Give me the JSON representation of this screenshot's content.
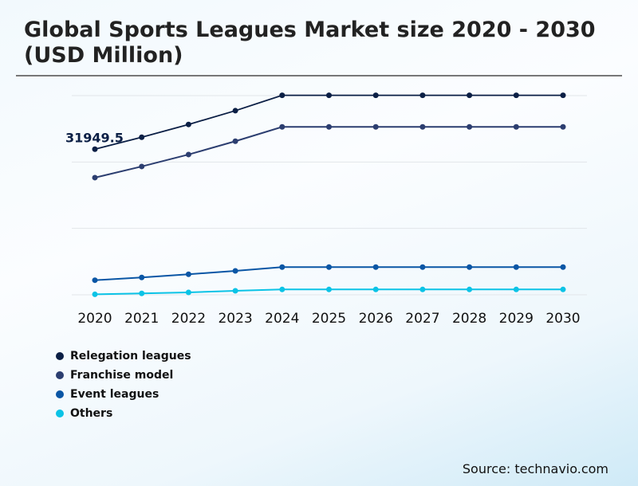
{
  "title": "Global Sports Leagues Market size 2020 - 2030 (USD Million)",
  "source": "Source: technavio.com",
  "chart_data": {
    "type": "line",
    "title": "Global Sports Leagues Market size 2020 - 2030 (USD Million)",
    "xlabel": "",
    "ylabel": "",
    "categories": [
      "2020",
      "2021",
      "2022",
      "2023",
      "2024",
      "2025",
      "2026",
      "2027",
      "2028",
      "2029",
      "2030"
    ],
    "ylim": [
      0,
      43710
    ],
    "grid": true,
    "legend_placement": "bottom-left",
    "series": [
      {
        "name": "Relegation leagues",
        "color": "#0b1f45",
        "values": [
          31949.5,
          34580,
          37380,
          40400,
          43780,
          43780,
          43780,
          43780,
          43780,
          43780,
          43780
        ]
      },
      {
        "name": "Franchise model",
        "color": "#2c3e70",
        "values": [
          25710,
          28160,
          30780,
          33700,
          36850,
          36850,
          36850,
          36850,
          36850,
          36850,
          36850
        ]
      },
      {
        "name": "Event leagues",
        "color": "#0a56a5",
        "values": [
          3200,
          3800,
          4500,
          5250,
          6070,
          6070,
          6070,
          6070,
          6070,
          6070,
          6070
        ]
      },
      {
        "name": "Others",
        "color": "#0bc3e6",
        "values": [
          100,
          300,
          525,
          875,
          1170,
          1170,
          1170,
          1170,
          1170,
          1170,
          1170
        ]
      }
    ],
    "annotations": [
      {
        "series": "Relegation leagues",
        "x": "2020",
        "text": "31949.5"
      }
    ]
  }
}
